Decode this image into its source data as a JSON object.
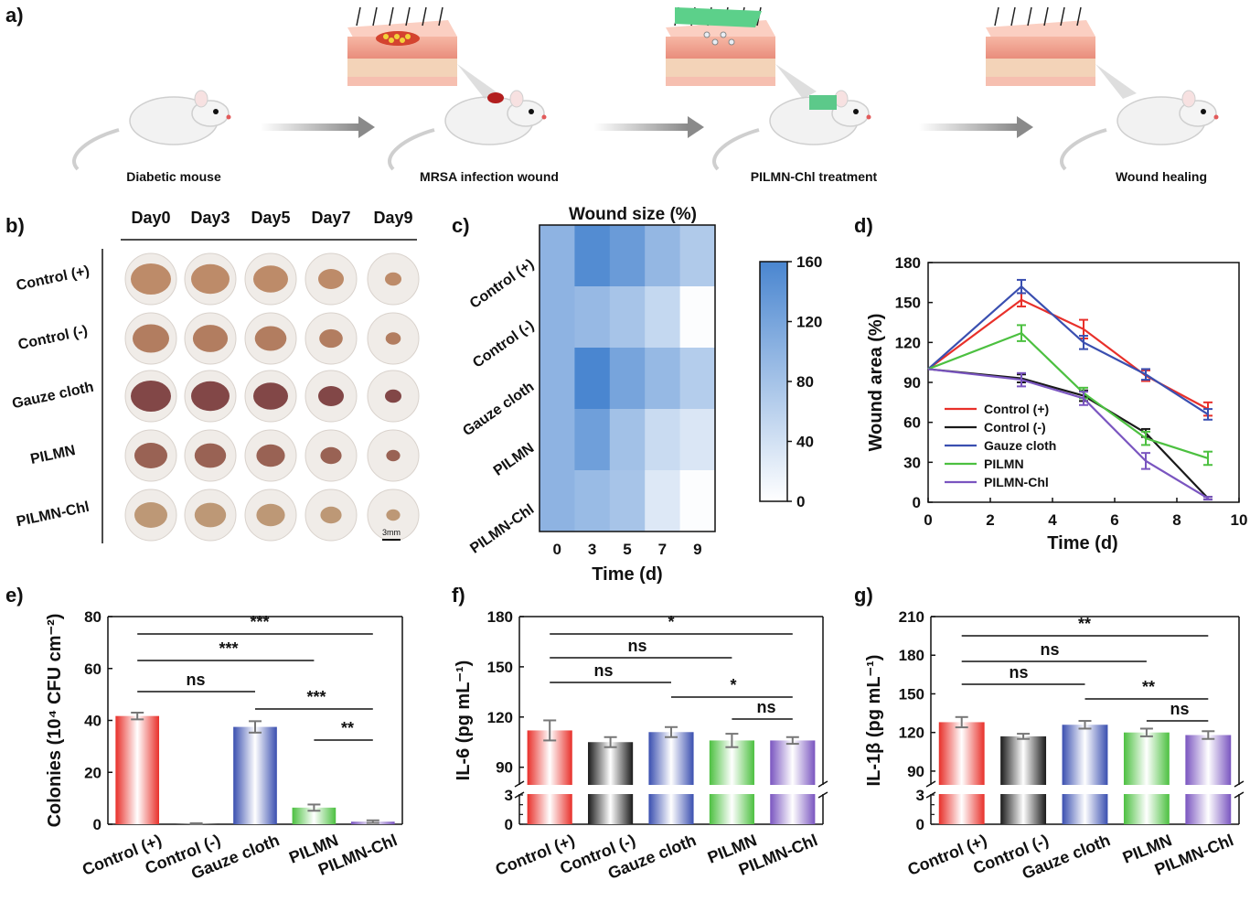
{
  "panel_letters": {
    "a": "a)",
    "b": "b)",
    "c": "c)",
    "d": "d)",
    "e": "e)",
    "f": "f)",
    "g": "g)"
  },
  "scheme": {
    "steps": [
      "Diabetic mouse",
      "MRSA infection wound",
      "PILMN-Chl treatment",
      "Wound healing"
    ]
  },
  "photos": {
    "days": [
      "Day0",
      "Day3",
      "Day5",
      "Day7",
      "Day9"
    ],
    "groups": [
      "Control (+)",
      "Control (-)",
      "Gauze cloth",
      "PILMN",
      "PILMN-Chl"
    ],
    "scale_bar": "3mm"
  },
  "colors": {
    "control_pos": "#e8302a",
    "control_neg": "#1a1a1a",
    "gauze": "#3a4fb0",
    "pilmn": "#4cc040",
    "pilmn_chl": "#7a55c0",
    "heat_low": "#ffffff",
    "heat_high": "#4a86d0"
  },
  "chart_data": [
    {
      "type": "heatmap",
      "title": "Wound size (%)",
      "xlabel": "Time (d)",
      "x": [
        0,
        3,
        5,
        7,
        9
      ],
      "rows": [
        "Control (+)",
        "Control (-)",
        "Gauze cloth",
        "PILMN",
        "PILMN-Chl"
      ],
      "values": [
        [
          100,
          152,
          132,
          95,
          70
        ],
        [
          100,
          92,
          78,
          52,
          3
        ],
        [
          100,
          160,
          120,
          93,
          66
        ],
        [
          100,
          127,
          82,
          48,
          33
        ],
        [
          100,
          90,
          78,
          30,
          3
        ]
      ],
      "colorbar": {
        "min": 0,
        "max": 160,
        "ticks": [
          0,
          40,
          80,
          120,
          160
        ]
      }
    },
    {
      "type": "line",
      "xlabel": "Time (d)",
      "ylabel": "Wound area (%)",
      "xlim": [
        0,
        10
      ],
      "ylim": [
        0,
        180
      ],
      "xticks": [
        0,
        2,
        4,
        6,
        8,
        10
      ],
      "yticks": [
        0,
        30,
        60,
        90,
        120,
        150,
        180
      ],
      "x": [
        0,
        3,
        5,
        7,
        9
      ],
      "series": [
        {
          "name": "Control (+)",
          "values": [
            100,
            152,
            130,
            95,
            70
          ],
          "err": [
            0,
            5,
            7,
            4,
            5
          ]
        },
        {
          "name": "Control (-)",
          "values": [
            100,
            93,
            80,
            52,
            3
          ],
          "err": [
            0,
            3,
            4,
            3,
            1
          ]
        },
        {
          "name": "Gauze cloth",
          "values": [
            100,
            162,
            120,
            96,
            66
          ],
          "err": [
            0,
            5,
            5,
            4,
            4
          ]
        },
        {
          "name": "PILMN",
          "values": [
            100,
            127,
            82,
            48,
            33
          ],
          "err": [
            0,
            6,
            4,
            5,
            5
          ]
        },
        {
          "name": "PILMN-Chl",
          "values": [
            100,
            92,
            78,
            31,
            3
          ],
          "err": [
            0,
            5,
            5,
            6,
            1
          ]
        }
      ],
      "legend": "bottom-left"
    },
    {
      "type": "bar",
      "ylabel": "Colonies (10⁴ CFU cm⁻²)",
      "categories": [
        "Control (+)",
        "Control (-)",
        "Gauze cloth",
        "PILMN",
        "PILMN-Chl"
      ],
      "values": [
        41.7,
        0.2,
        37.5,
        6.4,
        1.0
      ],
      "err": [
        1.3,
        0.2,
        2.2,
        1.2,
        0.5
      ],
      "ylim": [
        0,
        80
      ],
      "yticks": [
        0,
        20,
        40,
        60,
        80
      ],
      "significance": [
        {
          "from": 0,
          "to": 4,
          "label": "***"
        },
        {
          "from": 0,
          "to": 3,
          "label": "***"
        },
        {
          "from": 0,
          "to": 2,
          "label": "ns"
        },
        {
          "from": 2,
          "to": 4,
          "label": "***"
        },
        {
          "from": 3,
          "to": 4,
          "label": "**"
        }
      ]
    },
    {
      "type": "bar",
      "ylabel": "IL-6 (pg mL⁻¹)",
      "categories": [
        "Control (+)",
        "Control (-)",
        "Gauze cloth",
        "PILMN",
        "PILMN-Chl"
      ],
      "values": [
        112,
        105,
        111,
        106,
        106
      ],
      "err": [
        6,
        3,
        3,
        4,
        2
      ],
      "ylim": [
        80,
        180
      ],
      "yticks_upper": [
        90,
        120,
        150,
        180
      ],
      "yticks_lower": [
        0,
        1,
        2,
        3
      ],
      "significance": [
        {
          "from": 0,
          "to": 4,
          "label": "*"
        },
        {
          "from": 0,
          "to": 3,
          "label": "ns"
        },
        {
          "from": 0,
          "to": 2,
          "label": "ns"
        },
        {
          "from": 2,
          "to": 4,
          "label": "*"
        },
        {
          "from": 3,
          "to": 4,
          "label": "ns"
        }
      ]
    },
    {
      "type": "bar",
      "ylabel": "IL-1β (pg mL⁻¹)",
      "categories": [
        "Control (+)",
        "Control (-)",
        "Gauze cloth",
        "PILMN",
        "PILMN-Chl"
      ],
      "values": [
        128,
        117,
        126,
        120,
        118
      ],
      "err": [
        4,
        2,
        3,
        3,
        3
      ],
      "ylim": [
        80,
        210
      ],
      "yticks_upper": [
        90,
        120,
        150,
        180,
        210
      ],
      "yticks_lower": [
        0,
        1,
        2,
        3
      ],
      "significance": [
        {
          "from": 0,
          "to": 4,
          "label": "**"
        },
        {
          "from": 0,
          "to": 3,
          "label": "ns"
        },
        {
          "from": 0,
          "to": 2,
          "label": "ns"
        },
        {
          "from": 2,
          "to": 4,
          "label": "**"
        },
        {
          "from": 3,
          "to": 4,
          "label": "ns"
        }
      ]
    }
  ]
}
